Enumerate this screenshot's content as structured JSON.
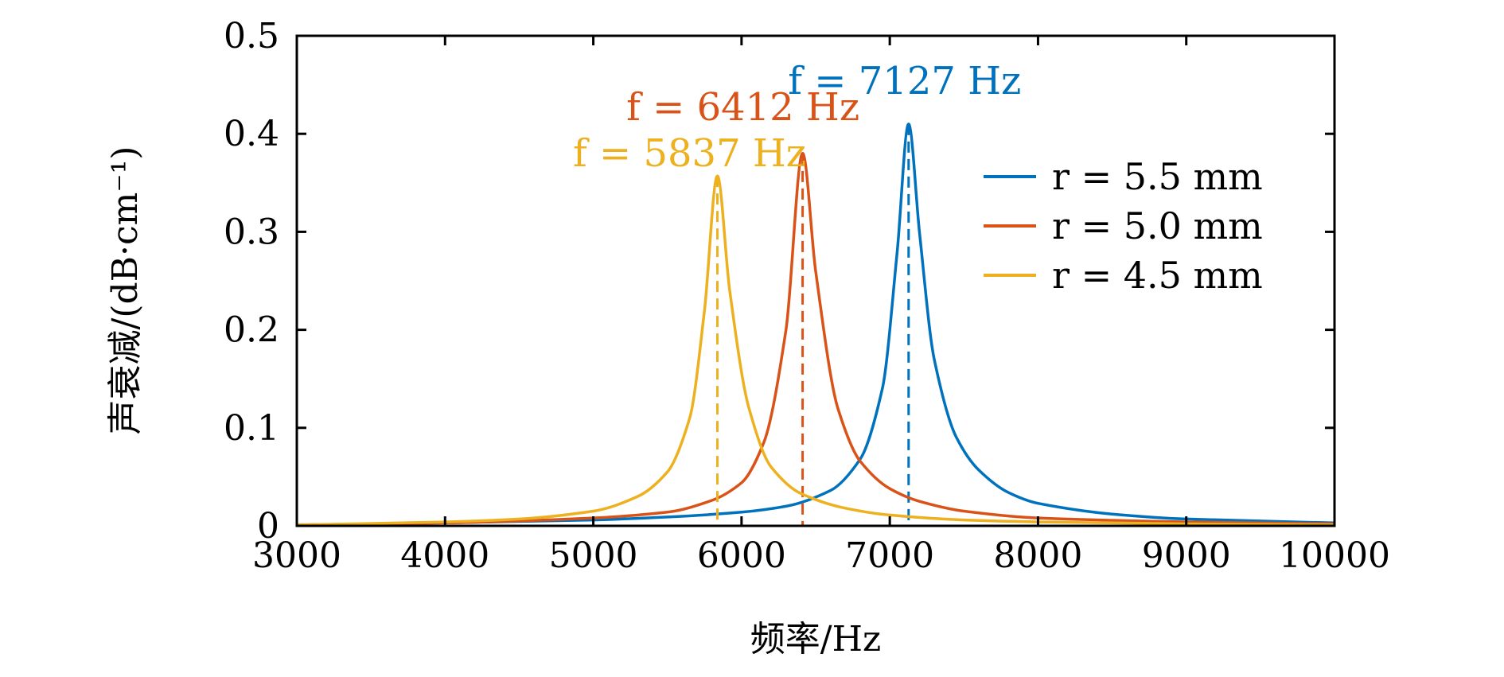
{
  "chart_data": {
    "type": "line",
    "xlabel": "频率/Hz",
    "ylabel": "声衰减/(dB·cm⁻¹)",
    "xlim": [
      3000,
      10000
    ],
    "ylim": [
      0,
      0.5
    ],
    "xticks": [
      3000,
      4000,
      5000,
      6000,
      7000,
      8000,
      9000,
      10000
    ],
    "xtick_labels": [
      "3000",
      "4000",
      "5000",
      "6000",
      "7000",
      "8000",
      "9000",
      "10000"
    ],
    "yticks": [
      0,
      0.1,
      0.2,
      0.3,
      0.4,
      0.5
    ],
    "ytick_labels": [
      "0",
      "0.1",
      "0.2",
      "0.3",
      "0.4",
      "0.5"
    ],
    "grid": false,
    "legend_position": "top-right",
    "series": [
      {
        "name": "r = 5.5 mm",
        "color": "#0072BD",
        "peak_frequency": 7127,
        "peak_value": 0.41,
        "x": [
          3000,
          4000,
          5000,
          5500,
          6000,
          6300,
          6600,
          6800,
          6950,
          7050,
          7127,
          7200,
          7300,
          7450,
          7600,
          7800,
          8000,
          8500,
          9000,
          10000
        ],
        "values": [
          0.001,
          0.003,
          0.006,
          0.009,
          0.014,
          0.02,
          0.036,
          0.068,
          0.14,
          0.28,
          0.41,
          0.3,
          0.17,
          0.09,
          0.057,
          0.034,
          0.023,
          0.012,
          0.007,
          0.003
        ]
      },
      {
        "name": "r = 5.0 mm",
        "color": "#D95319",
        "peak_frequency": 6412,
        "peak_value": 0.38,
        "x": [
          3000,
          4000,
          5000,
          5500,
          5800,
          6000,
          6150,
          6300,
          6412,
          6500,
          6650,
          6800,
          7000,
          7200,
          7500,
          8000,
          9000,
          10000
        ],
        "values": [
          0.001,
          0.003,
          0.008,
          0.014,
          0.026,
          0.044,
          0.085,
          0.2,
          0.38,
          0.26,
          0.12,
          0.066,
          0.038,
          0.025,
          0.015,
          0.008,
          0.004,
          0.002
        ]
      },
      {
        "name": "r = 4.5 mm",
        "color": "#EDB120",
        "peak_frequency": 5837,
        "peak_value": 0.357,
        "x": [
          3000,
          4000,
          4500,
          5000,
          5300,
          5500,
          5650,
          5750,
          5837,
          5920,
          6050,
          6200,
          6400,
          6700,
          7000,
          7500,
          8000,
          9000,
          10000
        ],
        "values": [
          0.001,
          0.004,
          0.007,
          0.015,
          0.03,
          0.055,
          0.11,
          0.22,
          0.357,
          0.24,
          0.12,
          0.06,
          0.033,
          0.018,
          0.011,
          0.006,
          0.004,
          0.002,
          0.001
        ]
      }
    ],
    "annotations": [
      {
        "series": "r = 5.5 mm",
        "text": "f = 7127 Hz",
        "x": 7127,
        "value": 0.41
      },
      {
        "series": "r = 5.0 mm",
        "text": "f = 6412 Hz",
        "x": 6412,
        "value": 0.38
      },
      {
        "series": "r = 4.5 mm",
        "text": "f = 5837 Hz",
        "x": 5837,
        "value": 0.357
      }
    ]
  }
}
